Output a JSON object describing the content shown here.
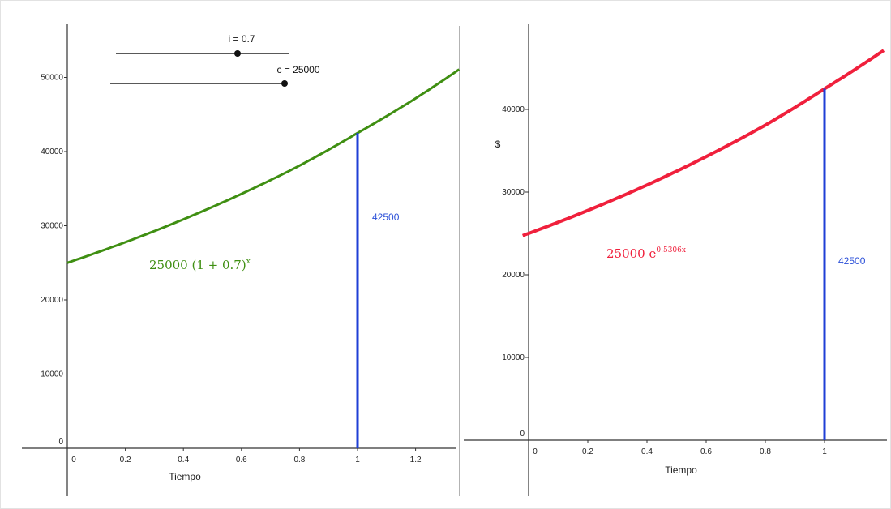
{
  "sliders": [
    {
      "name": "i",
      "label": "i = 0.7",
      "value": 0.7
    },
    {
      "name": "c",
      "label": "c = 25000",
      "value": 25000
    }
  ],
  "colors": {
    "left_curve": "#3f8f12",
    "right_curve": "#f0203c",
    "marker": "#1f3fd6",
    "marker_label": "#2a4fd8",
    "axis": "#333333"
  },
  "chart_data": [
    {
      "type": "line",
      "title": "",
      "xlabel": "Tiempo",
      "ylabel": "",
      "xlim": [
        -0.15,
        1.35
      ],
      "ylim": [
        -7000,
        56000
      ],
      "x_ticks": [
        "0",
        "0.2",
        "0.4",
        "0.6",
        "0.8",
        "1",
        "1.2"
      ],
      "y_ticks": [
        "0",
        "10000",
        "20000",
        "30000",
        "40000",
        "50000"
      ],
      "grid": false,
      "series": [
        {
          "formula": {
            "base": "25000  (1 + 0.7)",
            "exponent": "x"
          },
          "x": [
            0,
            0.2,
            0.4,
            0.6,
            0.8,
            1.0,
            1.2,
            1.35
          ],
          "y": [
            25000,
            27780,
            30860,
            34290,
            38100,
            42500,
            47170,
            51080
          ]
        }
      ],
      "marker": {
        "x": 1,
        "y": 42500,
        "label": "42500"
      }
    },
    {
      "type": "line",
      "title": "",
      "xlabel": "Tiempo",
      "ylabel": "$",
      "xlim": [
        -0.02,
        1.2
      ],
      "ylim": [
        -7000,
        48000
      ],
      "x_ticks": [
        "0",
        "0.2",
        "0.4",
        "0.6",
        "0.8",
        "1"
      ],
      "y_ticks": [
        "0",
        "10000",
        "20000",
        "30000",
        "40000"
      ],
      "grid": false,
      "series": [
        {
          "formula": {
            "base": "25000  e",
            "exponent": "0.5306x"
          },
          "x": [
            -0.02,
            0,
            0.2,
            0.4,
            0.6,
            0.8,
            1.0,
            1.2
          ],
          "y": [
            24740,
            25000,
            27780,
            30860,
            34290,
            38100,
            42500,
            47140
          ]
        }
      ],
      "marker": {
        "x": 1,
        "y": 42500,
        "label": "42500"
      }
    }
  ]
}
